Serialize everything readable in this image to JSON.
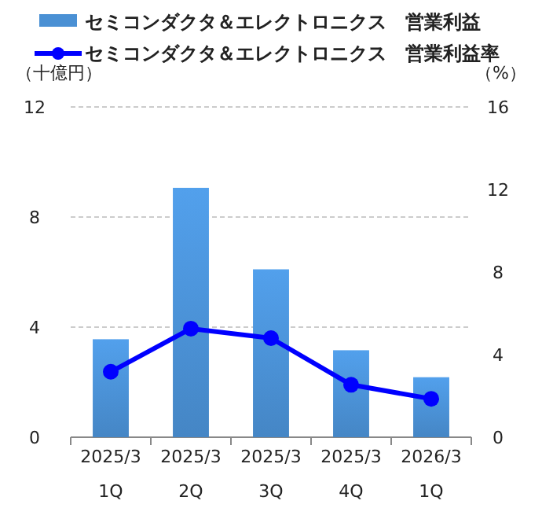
{
  "chart_data": {
    "type": "bar",
    "categories": [
      "2025/3\n1Q",
      "2025/3\n2Q",
      "2025/3\n3Q",
      "2025/3\n4Q",
      "2026/3\n1Q"
    ],
    "series": [
      {
        "name": "セミコンダクタ＆エレクトロニクス　営業利益",
        "color": "#4a90d4",
        "values": [
          3.56,
          9.06,
          6.1,
          3.16,
          2.18
        ]
      },
      {
        "name": "セミコンダクタ＆エレクトロニクス　営業利益率",
        "type": "line",
        "axis": "y2",
        "color": "#0000ff",
        "marker": "circle",
        "values": [
          3.17,
          5.26,
          4.8,
          2.54,
          1.86
        ]
      }
    ],
    "ylabel": "（十億円）",
    "y2label": "（%）",
    "ylim": [
      0,
      12
    ],
    "yticks": [
      0,
      4,
      8,
      12
    ],
    "y2lim": [
      0,
      16
    ],
    "y2ticks": [
      0,
      4,
      8,
      12,
      16
    ],
    "grid": "y",
    "legend": "top"
  }
}
